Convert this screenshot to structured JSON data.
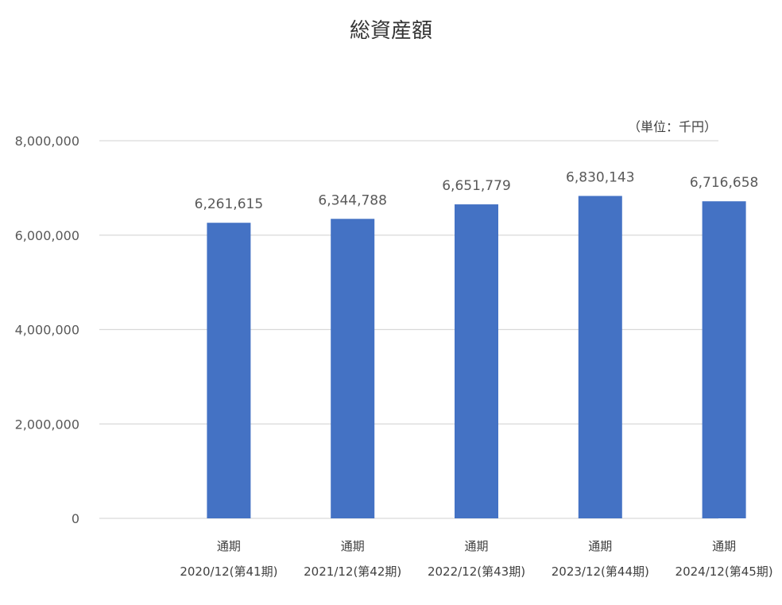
{
  "chart_data": {
    "type": "bar",
    "title": "総資産額",
    "unit": "（単位：千円）",
    "categories": [
      {
        "line1": "通期",
        "line2": "2020/12(第41期)"
      },
      {
        "line1": "通期",
        "line2": "2021/12(第42期)"
      },
      {
        "line1": "通期",
        "line2": "2022/12(第43期)"
      },
      {
        "line1": "通期",
        "line2": "2023/12(第44期)"
      },
      {
        "line1": "通期",
        "line2": "2024/12(第45期)"
      }
    ],
    "values": [
      6261615,
      6344788,
      6651779,
      6830143,
      6716658
    ],
    "value_labels": [
      "6,261,615",
      "6,344,788",
      "6,651,779",
      "6,830,143",
      "6,716,658"
    ],
    "yticks": [
      0,
      2000000,
      4000000,
      6000000,
      8000000
    ],
    "ytick_labels": [
      "0",
      "2,000,000",
      "4,000,000",
      "6,000,000",
      "8,000,000"
    ],
    "ylim": [
      0,
      8000000
    ],
    "grid": true,
    "legend": "none",
    "colors": {
      "bar": "#4472C4",
      "grid": "#D9D9D9",
      "text": "#595959"
    }
  }
}
